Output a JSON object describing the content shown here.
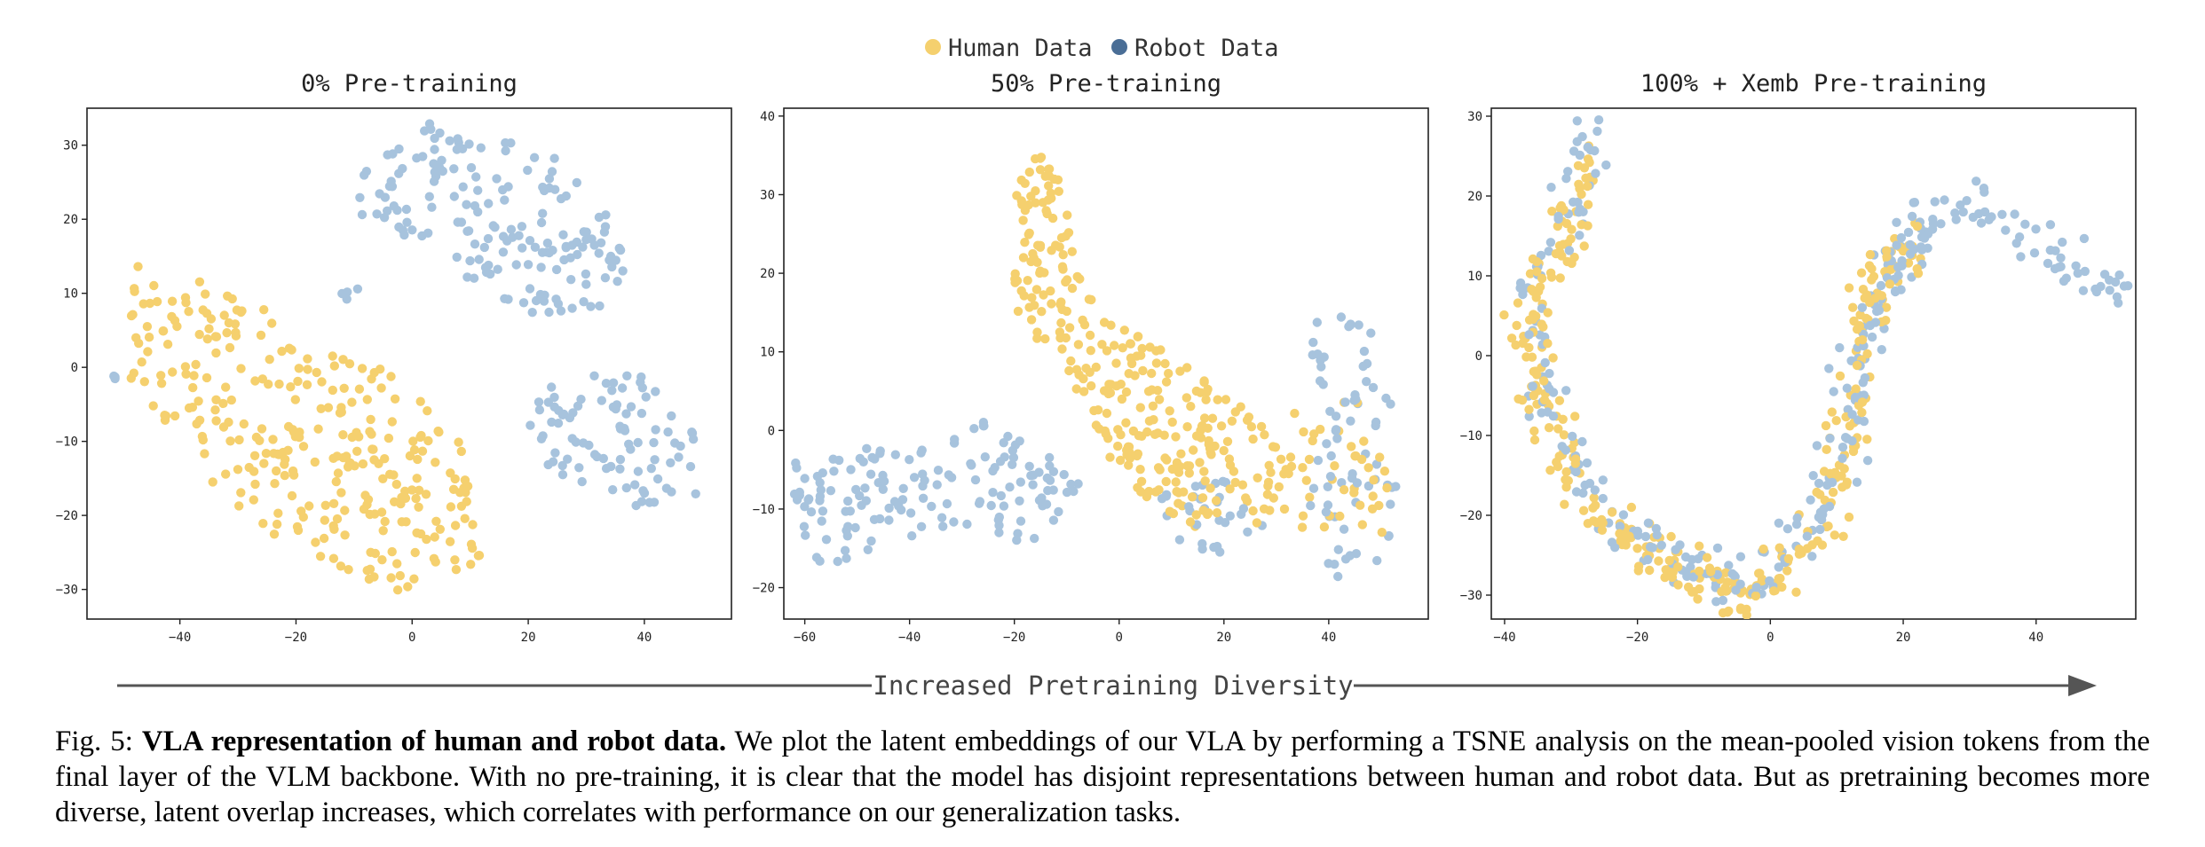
{
  "colors": {
    "human": "#F5D06E",
    "robot": "#A7C3DD",
    "robot_legend": "#4A6E96",
    "arrow": "#555555",
    "axis": "#222222"
  },
  "legend": [
    {
      "label": "Human Data",
      "series": "human"
    },
    {
      "label": "Robot Data",
      "series": "robot"
    }
  ],
  "arrow_label": "Increased Pretraining Diversity",
  "caption": {
    "prefix": "Fig. 5: ",
    "bold": "VLA representation of human and robot data.",
    "text": " We plot the latent embeddings of our VLA by performing a TSNE analysis on the mean-pooled vision tokens from the final layer of the VLM backbone. With no pre-training, it is clear that the model has disjoint representations between human and robot data. But as pretraining becomes more diverse, latent overlap increases, which correlates with performance on our generalization tasks."
  },
  "chart_data": [
    {
      "type": "scatter",
      "title": "0% Pre-training",
      "xlim": [
        -56,
        55
      ],
      "ylim": [
        -34,
        35
      ],
      "xticks": [
        -40,
        -20,
        0,
        20,
        40
      ],
      "yticks": [
        -30,
        -20,
        -10,
        0,
        10,
        20,
        30
      ],
      "series": [
        {
          "name": "Human Data",
          "color": "#F5D06E",
          "clusters": [
            {
              "poly": [
                [
                  -48,
                  14
                ],
                [
                  -28,
                  10
                ],
                [
                  -18,
                  3
                ],
                [
                  -5,
                  0
                ],
                [
                  8,
                  -9
                ],
                [
                  14,
                  -22
                ],
                [
                  12,
                  -27
                ],
                [
                  0,
                  -31
                ],
                [
                  -14,
                  -27
                ],
                [
                  -28,
                  -22
                ],
                [
                  -40,
                  -10
                ],
                [
                  -50,
                  0
                ],
                [
                  -50,
                  12
                ]
              ],
              "n": 300
            }
          ]
        },
        {
          "name": "Robot Data",
          "color": "#A7C3DD",
          "clusters": [
            {
              "poly": [
                [
                  -10,
                  25
                ],
                [
                  0,
                  33
                ],
                [
                  12,
                  33
                ],
                [
                  24,
                  29
                ],
                [
                  34,
                  22
                ],
                [
                  38,
                  12
                ],
                [
                  32,
                  8
                ],
                [
                  22,
                  7
                ],
                [
                  12,
                  10
                ],
                [
                  4,
                  14
                ],
                [
                  -4,
                  18
                ],
                [
                  -10,
                  21
                ]
              ],
              "n": 170
            },
            {
              "poly": [
                [
                  22,
                  -2
                ],
                [
                  40,
                  0
                ],
                [
                  50,
                  -8
                ],
                [
                  50,
                  -17
                ],
                [
                  38,
                  -19
                ],
                [
                  24,
                  -14
                ],
                [
                  20,
                  -8
                ]
              ],
              "n": 90
            },
            {
              "poly": [
                [
                  -52,
                  -1
                ],
                [
                  -51,
                  -1
                ],
                [
                  -51,
                  -2
                ],
                [
                  -52,
                  -2
                ]
              ],
              "n": 3
            },
            {
              "poly": [
                [
                  -13,
                  11
                ],
                [
                  -9,
                  11
                ],
                [
                  -9,
                  9
                ],
                [
                  -13,
                  9
                ]
              ],
              "n": 4
            }
          ]
        }
      ]
    },
    {
      "type": "scatter",
      "title": "50% Pre-training",
      "xlim": [
        -64,
        59
      ],
      "ylim": [
        -24,
        41
      ],
      "xticks": [
        -60,
        -40,
        -20,
        0,
        20,
        40
      ],
      "yticks": [
        -20,
        -10,
        0,
        10,
        20,
        30,
        40
      ],
      "series": [
        {
          "name": "Human Data",
          "color": "#F5D06E",
          "clusters": [
            {
              "poly": [
                [
                  -20,
                  36
                ],
                [
                  -12,
                  36
                ],
                [
                  -8,
                  22
                ],
                [
                  -2,
                  14
                ],
                [
                  10,
                  10
                ],
                [
                  26,
                  2
                ],
                [
                  34,
                  -4
                ],
                [
                  28,
                  -12
                ],
                [
                  16,
                  -13
                ],
                [
                  4,
                  -8
                ],
                [
                  -4,
                  -2
                ],
                [
                  -12,
                  8
                ],
                [
                  -20,
                  14
                ],
                [
                  -20,
                  24
                ]
              ],
              "n": 300
            },
            {
              "poly": [
                [
                  32,
                  2
                ],
                [
                  44,
                  6
                ],
                [
                  52,
                  -6
                ],
                [
                  50,
                  -14
                ],
                [
                  40,
                  -15
                ],
                [
                  30,
                  -10
                ]
              ],
              "n": 40
            }
          ]
        },
        {
          "name": "Robot Data",
          "color": "#A7C3DD",
          "clusters": [
            {
              "poly": [
                [
                  -62,
                  -4
                ],
                [
                  -50,
                  -2
                ],
                [
                  -36,
                  -2
                ],
                [
                  -28,
                  2
                ],
                [
                  -20,
                  0
                ],
                [
                  -12,
                  -4
                ],
                [
                  -6,
                  -8
                ],
                [
                  -12,
                  -14
                ],
                [
                  -22,
                  -14
                ],
                [
                  -32,
                  -12
                ],
                [
                  -46,
                  -16
                ],
                [
                  -56,
                  -18
                ],
                [
                  -62,
                  -12
                ]
              ],
              "n": 150
            },
            {
              "poly": [
                [
                  38,
                  16
                ],
                [
                  50,
                  12
                ],
                [
                  54,
                  0
                ],
                [
                  52,
                  -14
                ],
                [
                  46,
                  -20
                ],
                [
                  38,
                  -18
                ],
                [
                  36,
                  -8
                ],
                [
                  38,
                  0
                ],
                [
                  36,
                  10
                ]
              ],
              "n": 70
            },
            {
              "poly": [
                [
                  8,
                  -8
                ],
                [
                  22,
                  -6
                ],
                [
                  28,
                  -12
                ],
                [
                  20,
                  -16
                ],
                [
                  8,
                  -14
                ]
              ],
              "n": 30
            }
          ]
        }
      ]
    },
    {
      "type": "scatter",
      "title": "100% + Xemb Pre-training",
      "xlim": [
        -42,
        55
      ],
      "ylim": [
        -33,
        31
      ],
      "xticks": [
        -40,
        -20,
        0,
        20,
        40
      ],
      "yticks": [
        -30,
        -20,
        -10,
        0,
        10,
        20,
        30
      ],
      "series": [
        {
          "name": "Human Data",
          "color": "#F5D06E",
          "path": [
            [
              -28,
              24
            ],
            [
              -29,
              18
            ],
            [
              -32,
              12
            ],
            [
              -36,
              8
            ],
            [
              -36,
              0
            ],
            [
              -33,
              -10
            ],
            [
              -28,
              -18
            ],
            [
              -20,
              -24
            ],
            [
              -12,
              -27
            ],
            [
              -4,
              -30
            ],
            [
              3,
              -27
            ],
            [
              8,
              -20
            ],
            [
              11,
              -12
            ],
            [
              13,
              -3
            ],
            [
              14,
              4
            ],
            [
              17,
              10
            ],
            [
              22,
              15
            ]
          ],
          "spread": 2.6,
          "n": 340
        },
        {
          "name": "Robot Data",
          "color": "#A7C3DD",
          "path": [
            [
              -27,
              28
            ],
            [
              -29,
              20
            ],
            [
              -32,
              12
            ],
            [
              -37,
              9
            ],
            [
              -35,
              -2
            ],
            [
              -31,
              -12
            ],
            [
              -25,
              -20
            ],
            [
              -16,
              -25
            ],
            [
              -8,
              -28
            ],
            [
              0,
              -27
            ],
            [
              6,
              -22
            ],
            [
              10,
              -14
            ],
            [
              13,
              -4
            ],
            [
              16,
              6
            ],
            [
              22,
              16
            ],
            [
              30,
              19
            ],
            [
              38,
              15
            ],
            [
              46,
              11
            ],
            [
              53,
              7
            ]
          ],
          "spread": 2.5,
          "n": 300
        }
      ]
    }
  ]
}
